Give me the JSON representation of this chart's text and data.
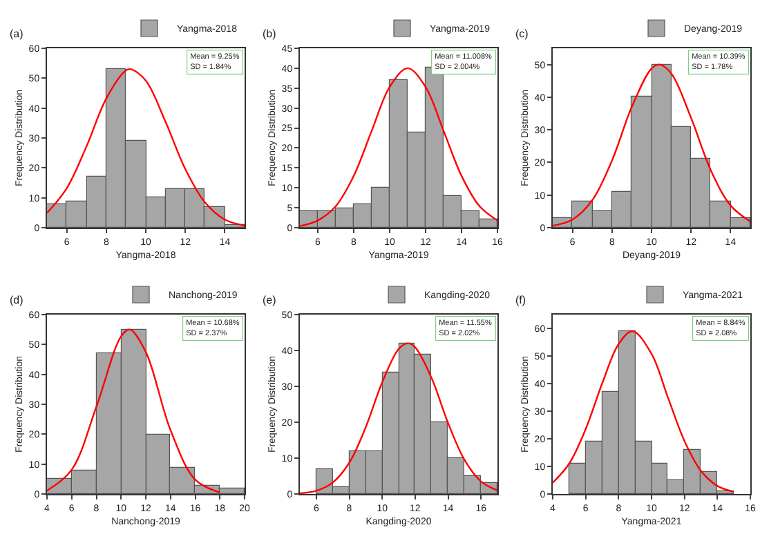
{
  "chart_data": [
    {
      "type": "histogram",
      "xlabel": "Yangma-2018",
      "ylabel": "Frequency Distribution",
      "bins": [
        5,
        6,
        7,
        8,
        9,
        10,
        11,
        12,
        13,
        14,
        15
      ],
      "xlim": [
        5,
        15
      ],
      "xticks": [
        6,
        8,
        10,
        12,
        14
      ],
      "ylim": [
        0,
        60
      ],
      "yticks": [
        0,
        10,
        20,
        30,
        40,
        50,
        60
      ],
      "grid": false,
      "legend": "top right",
      "annotations": [
        "(a)",
        "Mean = 9.25%\nSD = 1.84%"
      ],
      "series": [
        {
          "name": "Yangma-2018",
          "color": "#a6a6a6",
          "values": [
            8,
            9,
            17,
            53,
            29,
            10,
            13,
            13,
            7,
            1
          ]
        },
        {
          "type": "line",
          "color": "#ff0000",
          "x": [
            5,
            6,
            7,
            8,
            9,
            9.25,
            10,
            11,
            12,
            13,
            14,
            15
          ],
          "values": [
            4.9,
            13.2,
            27.2,
            43.2,
            52.6,
            53,
            49.2,
            35.4,
            19.6,
            8.4,
            2.7,
            0.7
          ]
        }
      ]
    },
    {
      "type": "histogram",
      "xlabel": "Yangma-2019",
      "ylabel": "Frequency Distribution",
      "bins": [
        5,
        6,
        7,
        8,
        9,
        10,
        11,
        12,
        13,
        14,
        15,
        16
      ],
      "xlim": [
        5,
        16
      ],
      "xticks": [
        6,
        8,
        10,
        12,
        14,
        16
      ],
      "ylim": [
        0,
        45
      ],
      "yticks": [
        0,
        5,
        10,
        15,
        20,
        25,
        30,
        35,
        40,
        45
      ],
      "grid": false,
      "legend": "top right",
      "annotations": [
        "(b)",
        "Mean = 11.008%\nSD = 2.004%"
      ],
      "series": [
        {
          "name": "Yangma-2019",
          "color": "#a6a6a6",
          "values": [
            4,
            4,
            5,
            6,
            10,
            37,
            24,
            40,
            8,
            4,
            2
          ]
        },
        {
          "type": "line",
          "color": "#ff0000",
          "x": [
            5,
            6,
            7,
            8,
            9,
            10,
            11,
            12,
            13,
            14,
            15,
            16
          ],
          "values": [
            0.4,
            1.8,
            5.4,
            13,
            24.3,
            35.3,
            40,
            35.3,
            24.3,
            13,
            5.4,
            1.8
          ]
        }
      ]
    },
    {
      "type": "histogram",
      "xlabel": "Deyang-2019",
      "ylabel": "Frequency Distribution",
      "bins": [
        5,
        6,
        7,
        8,
        9,
        10,
        11,
        12,
        13,
        14,
        15
      ],
      "xlim": [
        5,
        15
      ],
      "xticks": [
        6,
        8,
        10,
        12,
        14
      ],
      "ylim": [
        0,
        55
      ],
      "yticks": [
        0,
        10,
        20,
        30,
        40,
        50
      ],
      "grid": false,
      "legend": "top right",
      "annotations": [
        "(c)",
        "Mean = 10.39%\nSD = 1.78%"
      ],
      "series": [
        {
          "name": "Deyang-2019",
          "color": "#a6a6a6",
          "values": [
            3,
            8,
            5,
            11,
            40,
            50,
            31,
            21,
            8,
            3
          ]
        },
        {
          "type": "line",
          "color": "#ff0000",
          "x": [
            5,
            6,
            7,
            8,
            9,
            10,
            10.4,
            11,
            12,
            13,
            14,
            15
          ],
          "values": [
            0.6,
            2.5,
            8.4,
            20.6,
            37,
            48.8,
            50,
            47.3,
            33.7,
            17.6,
            6.8,
            1.9
          ]
        }
      ]
    },
    {
      "type": "histogram",
      "xlabel": "Nanchong-2019",
      "ylabel": "Frequency Distribution",
      "bins": [
        4,
        6,
        8,
        10,
        12,
        14,
        16,
        18,
        20
      ],
      "xlim": [
        4,
        20
      ],
      "xticks": [
        4,
        6,
        8,
        10,
        12,
        14,
        16,
        18,
        20
      ],
      "ylim": [
        0,
        60
      ],
      "yticks": [
        0,
        10,
        20,
        30,
        40,
        50,
        60
      ],
      "grid": false,
      "legend": "top right",
      "annotations": [
        "(d)",
        "Mean = 10.68%\nSD = 2.37%"
      ],
      "series": [
        {
          "name": "Nanchong-2019",
          "color": "#a6a6a6",
          "values": [
            5,
            8,
            47,
            55,
            20,
            9,
            3,
            2
          ]
        },
        {
          "type": "line",
          "color": "#ff0000",
          "x": [
            4,
            6,
            8,
            10,
            10.7,
            12,
            14,
            16,
            18
          ],
          "values": [
            1.1,
            8.1,
            29.2,
            52.7,
            55,
            47.5,
            21.4,
            4.8,
            0.5
          ]
        }
      ]
    },
    {
      "type": "histogram",
      "xlabel": "Kangding-2020",
      "ylabel": "Frequency Distribution",
      "bins": [
        6,
        7,
        8,
        9,
        10,
        11,
        12,
        13,
        14,
        15,
        16,
        17
      ],
      "xlim": [
        5,
        17
      ],
      "xticks": [
        6,
        8,
        10,
        12,
        14,
        16
      ],
      "ylim": [
        0,
        50
      ],
      "yticks": [
        0,
        10,
        20,
        30,
        40,
        50
      ],
      "grid": false,
      "legend": "top right",
      "annotations": [
        "(e)",
        "Mean = 11.55%\nSD = 2.02%"
      ],
      "series": [
        {
          "name": "Kangding-2020",
          "color": "#a6a6a6",
          "values": [
            7,
            2,
            12,
            12,
            34,
            42,
            39,
            20,
            10,
            5,
            3
          ]
        },
        {
          "type": "line",
          "color": "#ff0000",
          "x": [
            5,
            6,
            7,
            8,
            9,
            10,
            11,
            11.55,
            12,
            13,
            14,
            15,
            16,
            17
          ],
          "values": [
            0.2,
            0.9,
            3.2,
            8.7,
            18.6,
            31.1,
            40.4,
            42,
            40.9,
            32.3,
            19.8,
            9.5,
            3.5,
            1
          ]
        }
      ]
    },
    {
      "type": "histogram",
      "xlabel": "Yangma-2021",
      "ylabel": "Frequency Distribution",
      "bins": [
        5,
        6,
        7,
        8,
        9,
        10,
        11,
        12,
        13,
        14,
        15
      ],
      "xlim": [
        4,
        16
      ],
      "xticks": [
        4,
        6,
        8,
        10,
        12,
        14,
        16
      ],
      "ylim": [
        0,
        65
      ],
      "yticks": [
        0,
        10,
        20,
        30,
        40,
        50,
        60
      ],
      "grid": false,
      "legend": "top right",
      "annotations": [
        "(f)",
        "Mean = 8.84%\nSD = 2.08%"
      ],
      "series": [
        {
          "name": "Yangma-2021",
          "color": "#a6a6a6",
          "values": [
            11,
            19,
            37,
            59,
            19,
            11,
            5,
            16,
            8,
            1
          ]
        },
        {
          "type": "line",
          "color": "#ff0000",
          "x": [
            4,
            5,
            6,
            7,
            8,
            8.85,
            10,
            11,
            12,
            13,
            14,
            15
          ],
          "values": [
            4.1,
            11,
            23.5,
            40,
            54.3,
            59,
            50.8,
            34.9,
            19.2,
            8.4,
            2.9,
            0.8
          ]
        }
      ]
    }
  ]
}
